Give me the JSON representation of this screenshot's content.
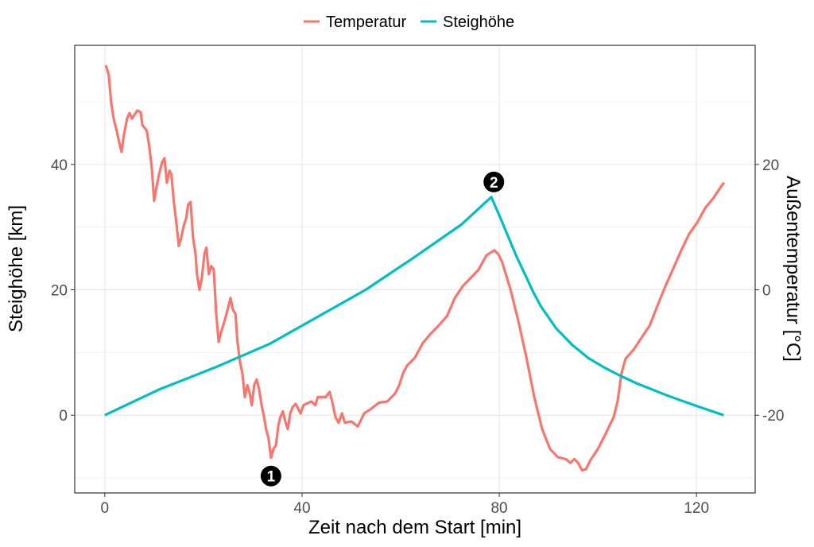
{
  "chart_data": {
    "type": "line",
    "title": "",
    "xlabel": "Zeit nach dem Start [min]",
    "ylabel": "Steighöhe [km]",
    "y2label": "Außentemperatur [°C]",
    "xlim": [
      -6.1,
      131.9
    ],
    "ylim": [
      -12.4,
      59
    ],
    "y2lim": [
      -32.4,
      39
    ],
    "x_ticks": [
      0,
      40,
      80,
      120
    ],
    "y_ticks": [
      0,
      20,
      40
    ],
    "y2_ticks": [
      -20,
      0,
      20
    ],
    "grid": true,
    "legend": {
      "position": "top",
      "entries": [
        "Temperatur",
        "Steighöhe"
      ]
    },
    "colors": {
      "Temperatur": "#F8766D",
      "Steighöhe": "#00BFC4"
    },
    "series": [
      {
        "name": "Temperatur",
        "axis": "right",
        "points": [
          [
            0.2,
            35.8
          ],
          [
            0.8,
            34.3
          ],
          [
            1.3,
            29.8
          ],
          [
            1.8,
            27.3
          ],
          [
            2.4,
            25.4
          ],
          [
            3.1,
            22.9
          ],
          [
            3.4,
            22.0
          ],
          [
            3.9,
            24.8
          ],
          [
            4.5,
            27.3
          ],
          [
            5.0,
            28.2
          ],
          [
            5.5,
            27.3
          ],
          [
            6.0,
            27.9
          ],
          [
            6.6,
            28.6
          ],
          [
            7.3,
            28.3
          ],
          [
            7.6,
            26.3
          ],
          [
            8.5,
            25.4
          ],
          [
            9.0,
            22.9
          ],
          [
            9.5,
            19.7
          ],
          [
            10.0,
            14.2
          ],
          [
            10.5,
            16.5
          ],
          [
            11.0,
            18.4
          ],
          [
            11.6,
            20.3
          ],
          [
            12.1,
            21.0
          ],
          [
            12.6,
            17.1
          ],
          [
            13.1,
            19.0
          ],
          [
            13.5,
            18.4
          ],
          [
            14.0,
            14.0
          ],
          [
            14.5,
            10.8
          ],
          [
            15.0,
            7.0
          ],
          [
            15.5,
            8.3
          ],
          [
            16.0,
            10.2
          ],
          [
            16.5,
            11.4
          ],
          [
            16.9,
            13.6
          ],
          [
            17.4,
            14.0
          ],
          [
            17.9,
            8.3
          ],
          [
            18.4,
            5.7
          ],
          [
            18.7,
            2.5
          ],
          [
            19.2,
            0
          ],
          [
            19.7,
            1.9
          ],
          [
            20.2,
            5.7
          ],
          [
            20.6,
            6.7
          ],
          [
            21.1,
            2.5
          ],
          [
            21.6,
            3.8
          ],
          [
            22.1,
            3.2
          ],
          [
            22.6,
            -3.8
          ],
          [
            23.1,
            -8.3
          ],
          [
            23.5,
            -7.0
          ],
          [
            24.5,
            -4.4
          ],
          [
            25.5,
            -1.3
          ],
          [
            26.0,
            -3.2
          ],
          [
            26.5,
            -3.8
          ],
          [
            26.9,
            -8.3
          ],
          [
            27.4,
            -11.4
          ],
          [
            27.9,
            -13.3
          ],
          [
            28.4,
            -17.1
          ],
          [
            28.9,
            -15.2
          ],
          [
            29.4,
            -16.5
          ],
          [
            29.8,
            -18.4
          ],
          [
            30.3,
            -15.2
          ],
          [
            30.8,
            -14.3
          ],
          [
            31.3,
            -15.9
          ],
          [
            31.8,
            -18.4
          ],
          [
            32.3,
            -20.3
          ],
          [
            32.7,
            -22.2
          ],
          [
            33.2,
            -23.7
          ],
          [
            33.7,
            -26.8
          ],
          [
            34.2,
            -25.4
          ],
          [
            34.7,
            -24.8
          ],
          [
            35.2,
            -21.6
          ],
          [
            35.6,
            -20.3
          ],
          [
            36.1,
            -19.4
          ],
          [
            36.6,
            -21.0
          ],
          [
            37.1,
            -22.2
          ],
          [
            37.6,
            -19.7
          ],
          [
            38.1,
            -18.7
          ],
          [
            38.7,
            -18.2
          ],
          [
            39.7,
            -19.7
          ],
          [
            40.3,
            -18.4
          ],
          [
            41.9,
            -17.8
          ],
          [
            42.7,
            -18.4
          ],
          [
            43.2,
            -17.1
          ],
          [
            44.8,
            -17.1
          ],
          [
            45.6,
            -16.3
          ],
          [
            46.1,
            -17.8
          ],
          [
            46.8,
            -20.3
          ],
          [
            47.4,
            -21.2
          ],
          [
            48.1,
            -19.7
          ],
          [
            48.7,
            -21.2
          ],
          [
            50.0,
            -21.0
          ],
          [
            51.3,
            -21.8
          ],
          [
            52.6,
            -19.7
          ],
          [
            54.0,
            -19.0
          ],
          [
            55.6,
            -18.0
          ],
          [
            57.3,
            -17.8
          ],
          [
            58.9,
            -16.5
          ],
          [
            59.7,
            -15.2
          ],
          [
            60.5,
            -13.3
          ],
          [
            61.3,
            -12.1
          ],
          [
            62.9,
            -10.8
          ],
          [
            64.5,
            -8.5
          ],
          [
            66.1,
            -7.0
          ],
          [
            67.7,
            -5.7
          ],
          [
            69.4,
            -4.2
          ],
          [
            71.0,
            -1.3
          ],
          [
            72.6,
            0.6
          ],
          [
            74.2,
            1.9
          ],
          [
            75.8,
            3.2
          ],
          [
            77.4,
            5.5
          ],
          [
            79.0,
            6.3
          ],
          [
            79.8,
            5.7
          ],
          [
            80.6,
            4.4
          ],
          [
            82.3,
            0
          ],
          [
            83.9,
            -5.1
          ],
          [
            85.5,
            -10.8
          ],
          [
            87.1,
            -17.1
          ],
          [
            88.7,
            -22.2
          ],
          [
            90.3,
            -25.4
          ],
          [
            91.9,
            -26.7
          ],
          [
            93.5,
            -27.0
          ],
          [
            94.4,
            -27.6
          ],
          [
            95.2,
            -27.0
          ],
          [
            96.0,
            -27.6
          ],
          [
            96.8,
            -28.8
          ],
          [
            97.6,
            -28.6
          ],
          [
            98.4,
            -27.3
          ],
          [
            100.0,
            -25.4
          ],
          [
            101.6,
            -22.9
          ],
          [
            103.2,
            -20.3
          ],
          [
            104.0,
            -17.8
          ],
          [
            104.8,
            -13.3
          ],
          [
            105.6,
            -11.0
          ],
          [
            107.3,
            -9.5
          ],
          [
            108.9,
            -7.6
          ],
          [
            110.5,
            -5.7
          ],
          [
            112.1,
            -2.5
          ],
          [
            113.7,
            0.6
          ],
          [
            115.3,
            3.4
          ],
          [
            116.9,
            6.3
          ],
          [
            118.5,
            8.9
          ],
          [
            120.2,
            10.8
          ],
          [
            121.8,
            13.1
          ],
          [
            123.4,
            14.6
          ],
          [
            125.0,
            16.5
          ],
          [
            125.6,
            17.1
          ]
        ]
      },
      {
        "name": "Steighöhe",
        "axis": "left",
        "points": [
          [
            0,
            0
          ],
          [
            11,
            4.1
          ],
          [
            22.3,
            7.6
          ],
          [
            33.5,
            11.4
          ],
          [
            43.2,
            15.7
          ],
          [
            52.9,
            20.0
          ],
          [
            62.6,
            25.1
          ],
          [
            72.3,
            30.4
          ],
          [
            78.4,
            34.8
          ],
          [
            80.2,
            31.5
          ],
          [
            81.9,
            28.3
          ],
          [
            83.5,
            25.3
          ],
          [
            85.2,
            22.5
          ],
          [
            86.8,
            19.8
          ],
          [
            88.4,
            17.4
          ],
          [
            91.6,
            13.8
          ],
          [
            94.8,
            11.2
          ],
          [
            98.1,
            9.1
          ],
          [
            101.3,
            7.6
          ],
          [
            104.5,
            6.3
          ],
          [
            107.8,
            5.1
          ],
          [
            111,
            4.1
          ],
          [
            114.2,
            3.1
          ],
          [
            117.4,
            2.2
          ],
          [
            121.4,
            1.1
          ],
          [
            125.5,
            0
          ]
        ]
      }
    ],
    "annotations": [
      {
        "label": "1",
        "x": 33.7,
        "y": -9.7
      },
      {
        "label": "2",
        "x": 78.9,
        "y": 37.2
      }
    ]
  }
}
